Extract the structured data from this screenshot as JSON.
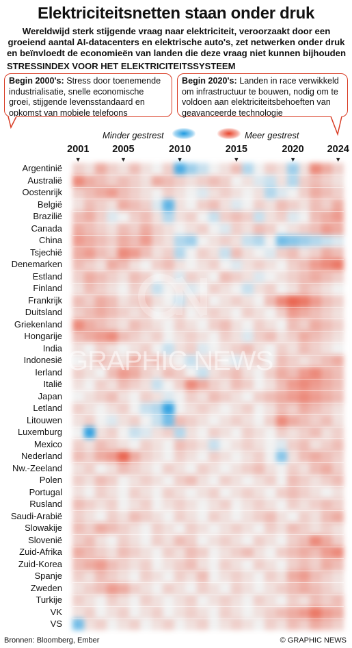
{
  "title": "Elektriciteitsnetten staan onder druk",
  "subtitle": "Wereldwijd sterk stijgende vraag naar elektriciteit, veroorzaakt door een groeiend aantal AI-datacenters en elektrische auto's, zet netwerken onder druk en beïnvloedt de economieën van landen die deze vraag niet kunnen bijhouden",
  "section_heading": "STRESSINDEX VOOR HET ELEKTRICITEITSSYSTEEM",
  "callouts": {
    "left": {
      "bold": "Begin 2000's:",
      "text": " Stress door toenemende industrialisatie, snelle economische groei, stijgende levensstandaard en opkomst van mobiele telefoons"
    },
    "right": {
      "bold": "Begin 2020's:",
      "text": " Landen in race verwikkeld om infrastructuur te bouwen, nodig om te voldoen aan elektriciteitsbehoeften van geavanceerde technologie"
    }
  },
  "legend": {
    "low_label": "Minder gestrest",
    "high_label": "Meer gestrest"
  },
  "year_labels": [
    "2001",
    "2005",
    "2010",
    "2015",
    "2020",
    "2024"
  ],
  "colors": {
    "high": "#e8452c",
    "low": "#1f9ae0",
    "neutral": "#f1f1f1",
    "accent": "#d83a22"
  },
  "footer": {
    "source": "Bronnen: Bloomberg, Ember",
    "credit": "© GRAPHIC NEWS"
  },
  "watermark": "GRAPHIC NEWS",
  "chart_data": {
    "type": "heatmap",
    "title": "STRESSINDEX VOOR HET ELEKTRICITEITSSYSTEEM",
    "x_start": 2001,
    "x_end": 2024,
    "x_ticks": [
      2001,
      2005,
      2010,
      2015,
      2020,
      2024
    ],
    "value_range": [
      -1,
      1
    ],
    "countries": [
      "Argentinië",
      "Australië",
      "Oostenrijk",
      "België",
      "Brazilië",
      "Canada",
      "China",
      "Tsjechië",
      "Denemarken",
      "Estland",
      "Finland",
      "Frankrijk",
      "Duitsland",
      "Griekenland",
      "Hongarije",
      "India",
      "Indonesië",
      "Ierland",
      "Italië",
      "Japan",
      "Letland",
      "Litouwen",
      "Luxemburg",
      "Mexico",
      "Nederland",
      "Nw.-Zeeland",
      "Polen",
      "Portugal",
      "Rusland",
      "Saudi-Arabië",
      "Slowakije",
      "Slovenië",
      "Zuid-Afrika",
      "Zuid-Korea",
      "Spanje",
      "Zweden",
      "Turkije",
      "VK",
      "VS"
    ],
    "values": [
      [
        0.2,
        0.1,
        0.4,
        0.2,
        0.1,
        0.3,
        0.1,
        0.0,
        0.2,
        -0.8,
        -0.4,
        -0.2,
        0.0,
        0.1,
        0.3,
        -0.3,
        0.0,
        0.2,
        0.1,
        -0.4,
        0.1,
        0.6,
        0.4,
        0.2
      ],
      [
        0.6,
        0.4,
        0.3,
        0.2,
        0.3,
        0.2,
        0.1,
        0.4,
        0.3,
        0.2,
        0.1,
        0.2,
        0.3,
        0.2,
        0.0,
        0.1,
        -0.1,
        -0.2,
        0.1,
        -0.3,
        0.2,
        0.3,
        0.2,
        0.1
      ],
      [
        0.2,
        0.3,
        0.4,
        0.5,
        0.3,
        0.2,
        0.1,
        0.0,
        0.2,
        0.1,
        0.0,
        -0.1,
        0.1,
        0.2,
        0.1,
        0.0,
        0.1,
        -0.3,
        -0.1,
        0.0,
        0.2,
        0.4,
        0.3,
        0.2
      ],
      [
        0.1,
        0.3,
        0.2,
        0.1,
        0.4,
        0.3,
        0.2,
        -0.1,
        -0.7,
        0.1,
        0.0,
        0.2,
        0.3,
        0.1,
        -0.1,
        0.0,
        0.2,
        0.1,
        0.3,
        0.2,
        0.1,
        0.3,
        0.2,
        0.4
      ],
      [
        0.3,
        0.4,
        0.2,
        -0.1,
        0.0,
        0.2,
        0.3,
        0.1,
        -0.3,
        0.1,
        0.2,
        0.0,
        -0.2,
        0.2,
        0.3,
        0.2,
        -0.2,
        0.1,
        0.2,
        -0.1,
        0.0,
        0.3,
        0.4,
        0.5
      ],
      [
        0.4,
        0.3,
        0.2,
        0.1,
        0.3,
        0.2,
        0.4,
        0.2,
        0.1,
        0.0,
        0.1,
        0.2,
        0.0,
        -0.1,
        0.2,
        0.1,
        0.3,
        0.2,
        0.0,
        0.1,
        0.2,
        0.3,
        0.5,
        0.4
      ],
      [
        0.5,
        0.4,
        0.3,
        0.2,
        0.4,
        0.3,
        0.5,
        0.2,
        0.1,
        -0.3,
        -0.4,
        0.0,
        0.1,
        0.2,
        0.1,
        -0.2,
        -0.3,
        0.0,
        -0.6,
        -0.5,
        -0.4,
        -0.3,
        -0.2,
        -0.1
      ],
      [
        0.4,
        0.5,
        0.3,
        0.2,
        0.6,
        0.5,
        0.3,
        0.1,
        0.2,
        -0.3,
        0.0,
        0.2,
        0.1,
        -0.2,
        0.3,
        0.1,
        0.0,
        -0.1,
        0.2,
        0.3,
        0.1,
        0.2,
        0.4,
        0.3
      ],
      [
        0.3,
        0.2,
        0.1,
        0.4,
        0.3,
        0.1,
        0.0,
        0.2,
        0.3,
        0.1,
        0.0,
        0.1,
        0.2,
        0.0,
        -0.1,
        0.1,
        0.2,
        0.1,
        0.0,
        0.2,
        0.3,
        0.5,
        0.6,
        0.7
      ],
      [
        0.2,
        0.4,
        0.3,
        0.2,
        0.1,
        0.3,
        0.2,
        0.0,
        0.1,
        -0.1,
        0.2,
        0.1,
        0.0,
        0.3,
        0.2,
        0.1,
        -0.1,
        0.0,
        0.1,
        0.2,
        0.3,
        0.4,
        0.3,
        0.2
      ],
      [
        0.1,
        0.3,
        0.2,
        0.1,
        0.0,
        0.2,
        0.1,
        -0.2,
        0.0,
        0.1,
        -0.1,
        0.0,
        0.2,
        0.1,
        0.0,
        -0.2,
        0.1,
        0.2,
        0.0,
        0.1,
        0.3,
        0.2,
        0.1,
        0.0
      ],
      [
        0.3,
        0.2,
        0.4,
        0.3,
        0.1,
        0.2,
        0.3,
        0.1,
        0.0,
        -0.2,
        0.1,
        0.2,
        0.0,
        0.1,
        0.2,
        0.1,
        0.0,
        0.3,
        0.6,
        0.8,
        0.7,
        0.5,
        0.3,
        0.2
      ],
      [
        0.2,
        0.3,
        0.4,
        0.3,
        0.2,
        0.1,
        0.2,
        0.0,
        0.1,
        0.2,
        0.0,
        0.1,
        0.2,
        0.1,
        0.0,
        0.2,
        0.1,
        0.0,
        0.2,
        0.5,
        0.4,
        0.3,
        0.2,
        0.1
      ],
      [
        0.6,
        0.4,
        0.3,
        0.2,
        0.1,
        0.3,
        0.2,
        0.1,
        0.0,
        0.2,
        0.1,
        0.0,
        0.2,
        0.3,
        0.1,
        0.0,
        0.2,
        0.1,
        0.0,
        0.3,
        0.2,
        0.4,
        0.3,
        0.2
      ],
      [
        0.3,
        0.4,
        0.5,
        0.6,
        0.3,
        0.2,
        0.1,
        0.2,
        0.0,
        0.1,
        0.2,
        0.1,
        0.0,
        0.2,
        0.1,
        -0.1,
        0.2,
        0.3,
        0.1,
        0.2,
        0.4,
        0.3,
        0.2,
        0.1
      ],
      [
        0.1,
        0.0,
        0.2,
        0.1,
        0.0,
        0.1,
        0.2,
        0.0,
        -0.2,
        0.1,
        0.2,
        -0.1,
        0.0,
        0.1,
        0.2,
        0.3,
        0.1,
        0.0,
        0.2,
        0.1,
        0.3,
        0.2,
        0.1,
        0.0
      ],
      [
        0.0,
        0.1,
        0.3,
        0.2,
        0.1,
        0.4,
        0.2,
        0.3,
        0.1,
        0.0,
        -0.2,
        0.1,
        0.2,
        0.0,
        -0.1,
        0.1,
        0.2,
        0.0,
        0.3,
        0.2,
        0.1,
        0.2,
        0.3,
        0.4
      ],
      [
        0.2,
        0.1,
        0.0,
        0.3,
        0.5,
        0.4,
        0.2,
        0.1,
        0.3,
        0.2,
        0.0,
        -0.2,
        0.1,
        0.2,
        0.3,
        0.1,
        0.0,
        0.2,
        0.4,
        0.3,
        0.5,
        0.6,
        0.4,
        0.3
      ],
      [
        0.1,
        0.0,
        0.2,
        0.1,
        0.3,
        0.2,
        0.1,
        -0.2,
        0.0,
        0.2,
        0.6,
        0.4,
        0.2,
        0.1,
        0.3,
        0.2,
        0.0,
        0.1,
        0.3,
        0.5,
        0.6,
        0.5,
        0.4,
        0.3
      ],
      [
        0.0,
        0.1,
        0.2,
        0.3,
        0.1,
        0.0,
        0.2,
        0.1,
        -0.1,
        0.0,
        0.2,
        0.1,
        0.3,
        0.2,
        0.1,
        0.0,
        0.2,
        0.3,
        0.4,
        0.5,
        0.6,
        0.5,
        0.4,
        0.3
      ],
      [
        0.2,
        0.1,
        0.0,
        0.1,
        0.2,
        0.0,
        -0.2,
        -0.3,
        -0.9,
        0.0,
        0.1,
        0.2,
        0.1,
        0.0,
        0.1,
        0.2,
        0.0,
        0.1,
        0.3,
        0.2,
        0.4,
        0.3,
        0.2,
        0.1
      ],
      [
        0.1,
        0.2,
        0.0,
        -0.1,
        0.1,
        0.2,
        0.0,
        -0.2,
        -0.6,
        0.3,
        0.2,
        0.1,
        0.0,
        0.1,
        0.2,
        0.1,
        0.0,
        0.2,
        0.6,
        0.4,
        0.3,
        0.2,
        0.3,
        0.1
      ],
      [
        0.0,
        -0.9,
        0.1,
        0.2,
        0.0,
        -0.2,
        -0.1,
        0.1,
        0.2,
        -0.3,
        0.1,
        0.0,
        0.2,
        0.1,
        0.0,
        0.2,
        0.1,
        0.0,
        0.2,
        0.1,
        0.2,
        0.3,
        0.1,
        0.2
      ],
      [
        0.2,
        0.1,
        0.3,
        0.2,
        0.1,
        0.0,
        0.2,
        0.1,
        0.0,
        0.3,
        0.2,
        0.1,
        -0.2,
        0.0,
        0.1,
        0.2,
        0.1,
        0.0,
        -0.1,
        0.2,
        0.3,
        0.1,
        0.2,
        0.3
      ],
      [
        0.3,
        0.2,
        0.4,
        0.5,
        0.8,
        0.4,
        0.2,
        0.1,
        0.0,
        0.2,
        0.1,
        0.0,
        0.2,
        0.1,
        0.0,
        0.1,
        0.2,
        0.0,
        -0.5,
        0.1,
        0.3,
        0.4,
        0.3,
        0.2
      ],
      [
        0.1,
        0.2,
        0.0,
        0.1,
        0.3,
        0.2,
        0.1,
        0.0,
        0.2,
        0.1,
        0.0,
        0.2,
        0.1,
        0.0,
        0.1,
        0.2,
        0.3,
        0.1,
        0.0,
        0.2,
        0.1,
        0.3,
        0.4,
        0.2
      ],
      [
        0.2,
        0.1,
        0.3,
        0.2,
        0.0,
        0.1,
        0.2,
        0.1,
        0.0,
        0.2,
        0.3,
        0.1,
        0.0,
        0.2,
        0.1,
        0.0,
        0.1,
        0.2,
        0.0,
        0.3,
        0.2,
        0.1,
        0.2,
        0.3
      ],
      [
        0.1,
        0.0,
        0.2,
        0.1,
        0.0,
        0.2,
        0.1,
        0.0,
        0.2,
        0.1,
        0.0,
        0.1,
        0.2,
        0.0,
        0.1,
        0.2,
        0.1,
        0.0,
        0.2,
        0.3,
        0.2,
        0.1,
        0.0,
        0.1
      ],
      [
        0.3,
        0.2,
        0.1,
        0.2,
        0.0,
        0.1,
        0.2,
        0.0,
        0.1,
        0.2,
        0.1,
        0.0,
        0.1,
        0.2,
        0.0,
        0.1,
        0.2,
        0.1,
        0.0,
        0.2,
        0.1,
        0.2,
        0.3,
        0.2
      ],
      [
        0.2,
        0.1,
        0.0,
        0.2,
        0.1,
        0.3,
        0.2,
        0.1,
        0.0,
        0.2,
        0.1,
        0.0,
        0.2,
        0.1,
        0.0,
        0.1,
        0.2,
        0.3,
        0.1,
        0.0,
        0.2,
        0.1,
        0.3,
        0.4
      ],
      [
        0.3,
        0.2,
        0.4,
        0.3,
        0.2,
        0.1,
        0.0,
        0.2,
        0.1,
        0.0,
        0.2,
        0.1,
        0.0,
        0.1,
        0.2,
        0.1,
        0.0,
        0.2,
        0.1,
        0.3,
        0.2,
        0.1,
        0.2,
        0.1
      ],
      [
        0.2,
        0.3,
        0.1,
        0.0,
        0.2,
        0.1,
        0.0,
        0.2,
        0.1,
        0.3,
        0.2,
        0.0,
        0.1,
        0.2,
        0.1,
        0.0,
        0.2,
        0.1,
        0.0,
        0.2,
        0.3,
        0.6,
        0.4,
        0.2
      ],
      [
        0.4,
        0.3,
        0.2,
        0.1,
        0.3,
        0.2,
        0.1,
        0.0,
        0.2,
        0.1,
        0.3,
        0.2,
        0.0,
        0.1,
        0.2,
        0.3,
        0.1,
        0.0,
        0.2,
        0.3,
        0.4,
        0.3,
        0.5,
        0.6
      ],
      [
        0.3,
        0.4,
        0.5,
        0.3,
        0.2,
        0.1,
        0.2,
        0.0,
        0.1,
        0.2,
        0.3,
        0.1,
        0.0,
        0.2,
        0.1,
        0.0,
        0.2,
        0.1,
        0.0,
        0.2,
        0.3,
        0.2,
        0.4,
        0.3
      ],
      [
        0.2,
        0.1,
        0.3,
        0.2,
        0.1,
        0.0,
        0.2,
        0.1,
        0.0,
        0.2,
        0.1,
        0.3,
        0.0,
        0.1,
        0.2,
        0.1,
        0.0,
        0.2,
        0.1,
        0.4,
        0.5,
        0.3,
        0.2,
        0.1
      ],
      [
        0.1,
        0.2,
        0.3,
        0.5,
        0.4,
        0.2,
        0.1,
        0.0,
        0.2,
        0.1,
        0.0,
        0.2,
        0.1,
        0.0,
        0.2,
        0.1,
        0.0,
        0.1,
        0.2,
        0.3,
        0.4,
        0.3,
        0.2,
        0.1
      ],
      [
        0.2,
        0.1,
        0.0,
        0.2,
        0.1,
        0.0,
        0.2,
        0.1,
        0.0,
        0.1,
        0.2,
        0.0,
        0.1,
        0.2,
        0.1,
        0.0,
        0.2,
        0.1,
        0.0,
        0.2,
        0.1,
        0.3,
        0.2,
        0.3
      ],
      [
        0.1,
        0.2,
        0.0,
        0.1,
        0.2,
        0.0,
        0.1,
        0.2,
        0.0,
        0.1,
        0.2,
        0.1,
        0.0,
        0.2,
        0.1,
        0.0,
        0.1,
        0.2,
        0.3,
        0.4,
        0.5,
        0.7,
        0.5,
        0.4
      ],
      [
        -0.6,
        0.1,
        0.2,
        0.0,
        0.1,
        0.2,
        0.0,
        0.1,
        0.2,
        0.0,
        0.1,
        0.2,
        0.0,
        0.1,
        0.2,
        0.1,
        0.0,
        0.2,
        0.1,
        0.3,
        0.2,
        0.4,
        0.3,
        0.2
      ]
    ]
  }
}
